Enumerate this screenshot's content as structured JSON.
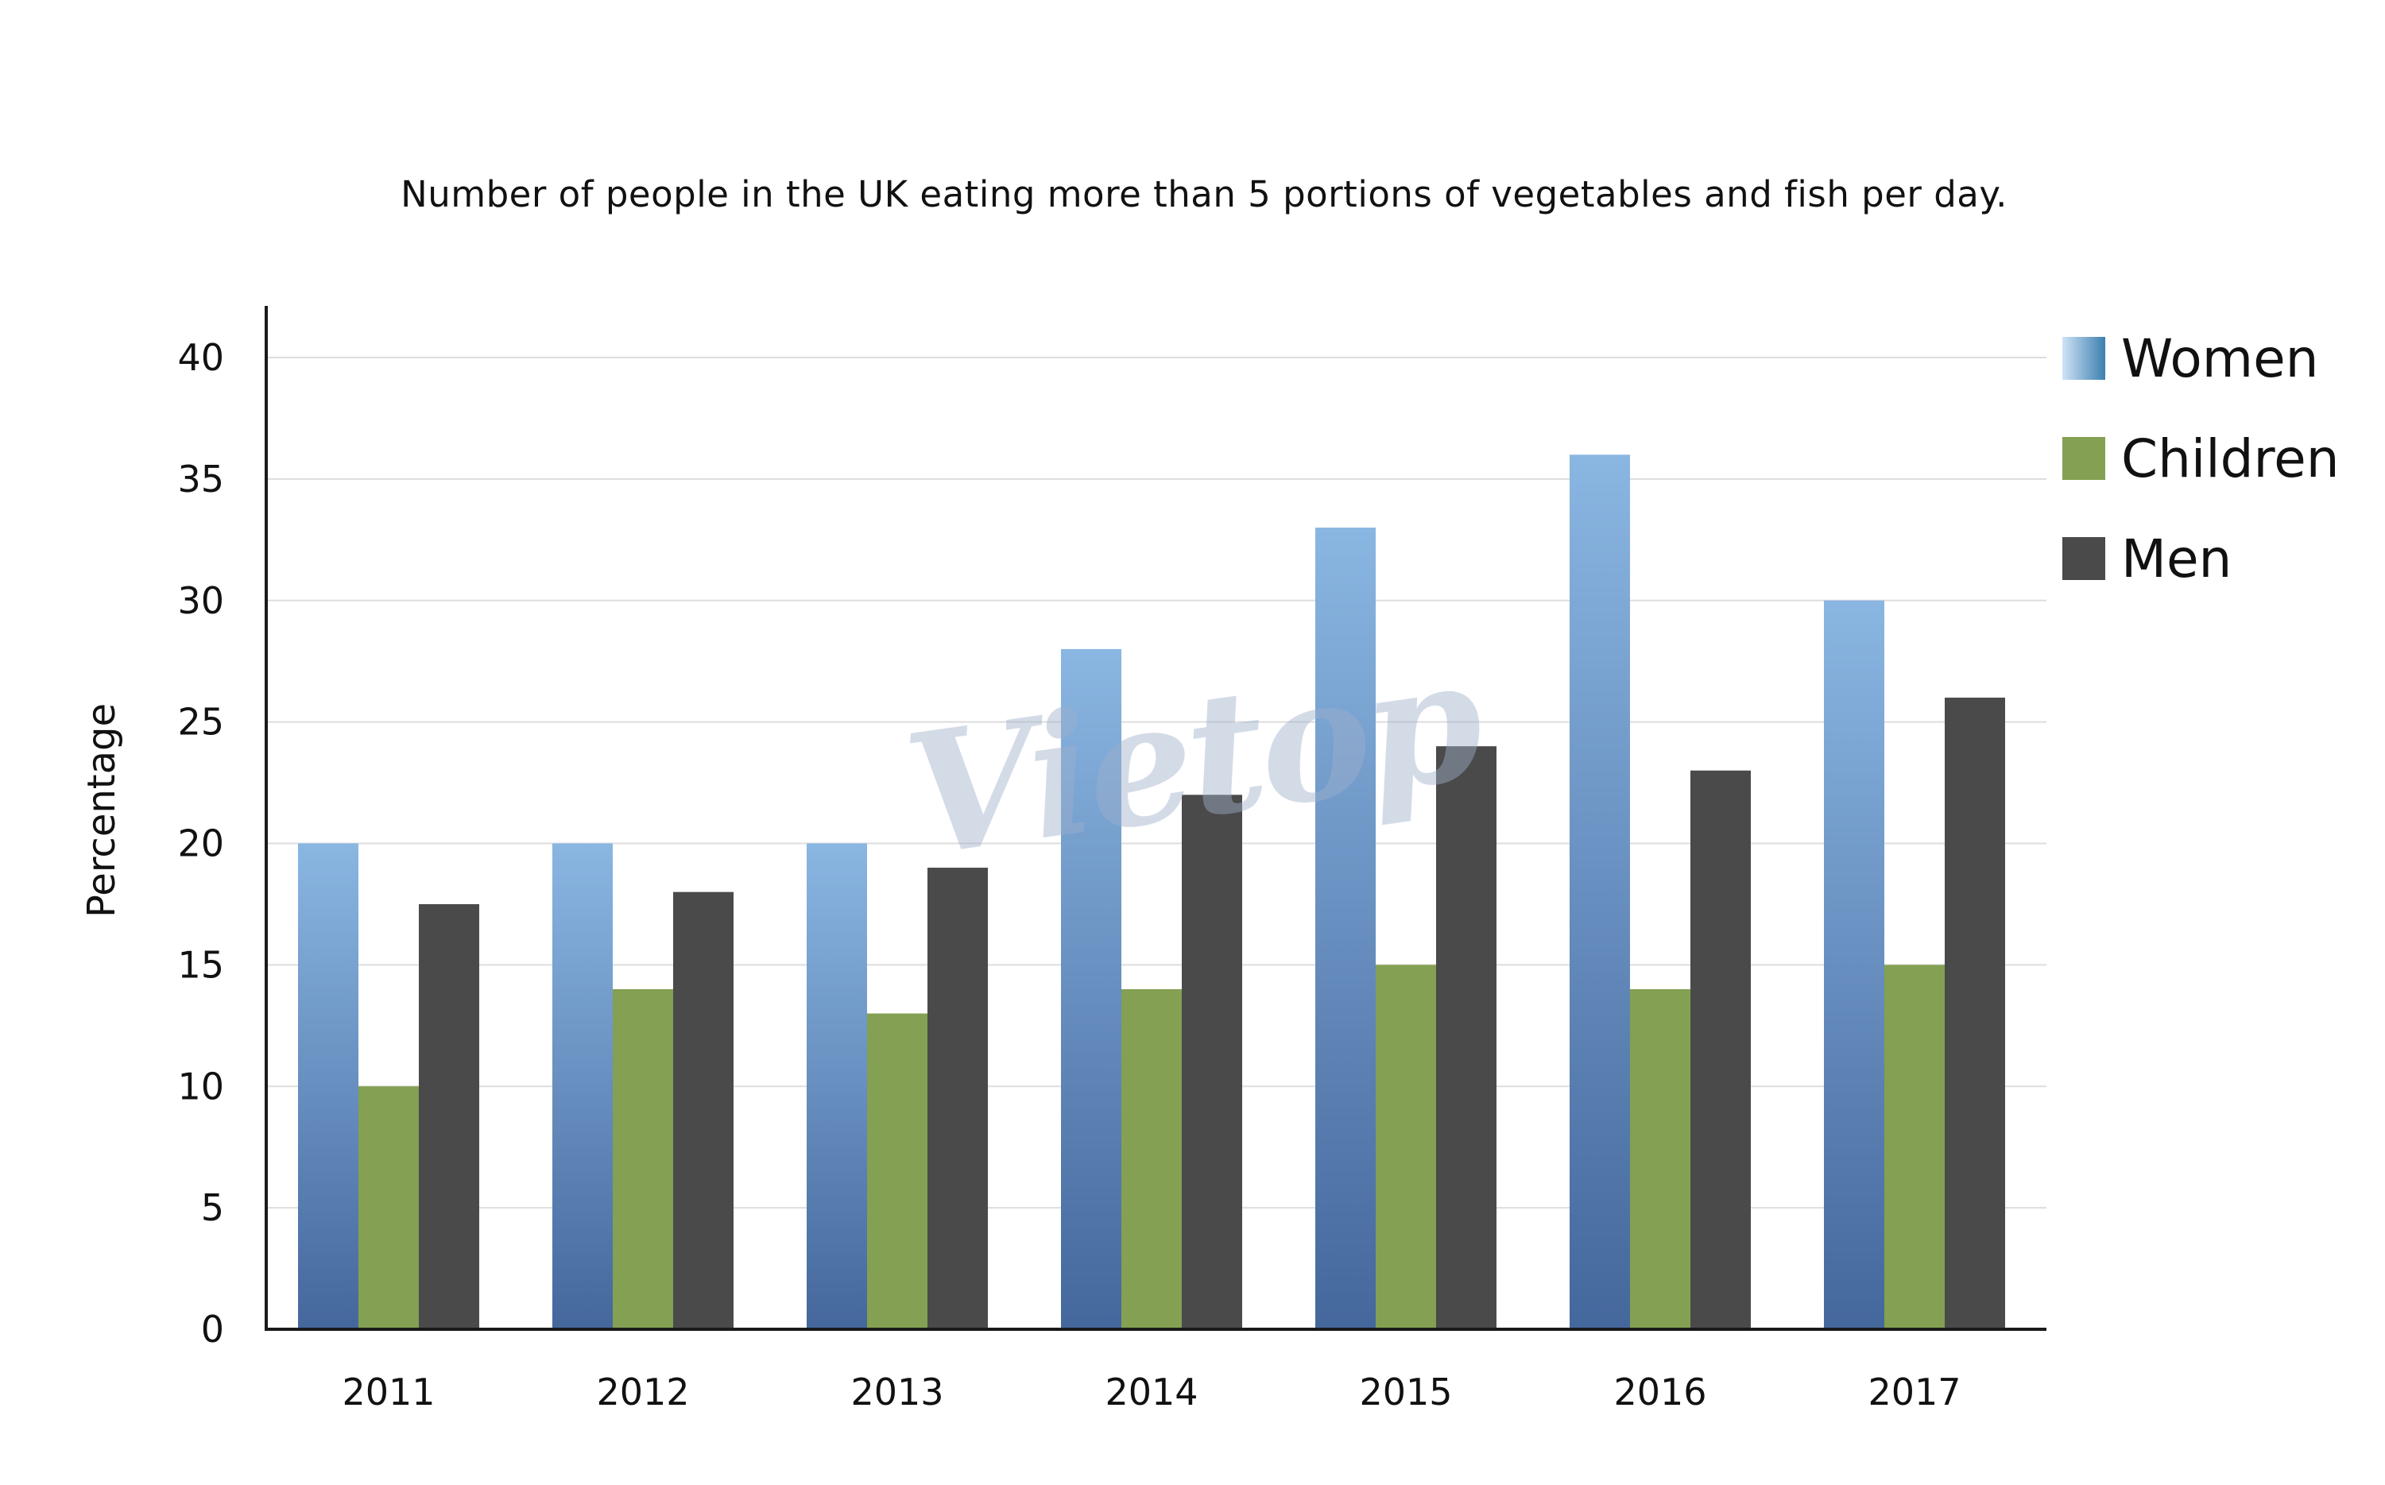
{
  "chart_data": {
    "type": "bar",
    "title": "Number of people in the UK eating more than 5 portions of vegetables and fish per day.",
    "xlabel": "",
    "ylabel": "Percentage",
    "categories": [
      "2011",
      "2012",
      "2013",
      "2014",
      "2015",
      "2016",
      "2017"
    ],
    "series": [
      {
        "name": "Women",
        "values": [
          20,
          20,
          20,
          28,
          33,
          36,
          30
        ],
        "color": "#4a6fa5"
      },
      {
        "name": "Children",
        "values": [
          10,
          14,
          13,
          14,
          15,
          14,
          15
        ],
        "color": "#84a052"
      },
      {
        "name": "Men",
        "values": [
          17.5,
          18,
          19,
          22,
          24,
          23,
          26
        ],
        "color": "#4a4a4a"
      }
    ],
    "ylim": [
      0,
      40
    ],
    "yticks": [
      0,
      5,
      10,
      15,
      20,
      25,
      30,
      35,
      40
    ],
    "grid": true,
    "legend_position": "top-right"
  },
  "watermark_text": "Vietop",
  "colors": {
    "women_top": "#8ab6e2",
    "women_bottom": "#44679c",
    "children": "#84a052",
    "men": "#4a4a4a",
    "grid": "#dddddd",
    "axis": "#1a1a1a"
  }
}
